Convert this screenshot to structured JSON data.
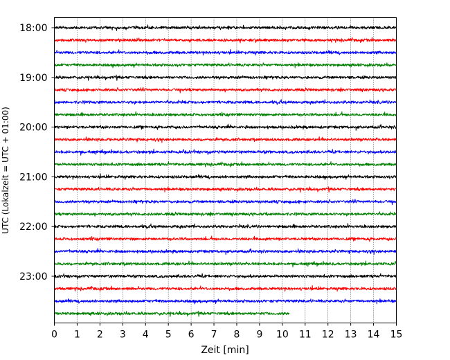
{
  "chart_data": {
    "type": "line",
    "title": "",
    "xlabel": "Zeit  [min]",
    "ylabel": "UTC (Lokalzeit = UTC + 01:00)",
    "xlim": [
      0,
      15
    ],
    "x_ticks": [
      "0",
      "1",
      "2",
      "3",
      "4",
      "5",
      "6",
      "7",
      "8",
      "9",
      "10",
      "11",
      "12",
      "13",
      "14",
      "15"
    ],
    "y_ticks": [
      "18:00",
      "19:00",
      "20:00",
      "21:00",
      "22:00",
      "23:00"
    ],
    "grid": "vertical dotted at each minute",
    "legend": "none",
    "trace_interval_min": 15,
    "trace_colors": [
      "#000000",
      "#ff0000",
      "#0000ff",
      "#008000"
    ],
    "traces": [
      {
        "start": "18:00",
        "end_min": 15
      },
      {
        "start": "18:15",
        "end_min": 15
      },
      {
        "start": "18:30",
        "end_min": 15
      },
      {
        "start": "18:45",
        "end_min": 15
      },
      {
        "start": "19:00",
        "end_min": 15
      },
      {
        "start": "19:15",
        "end_min": 15
      },
      {
        "start": "19:30",
        "end_min": 15
      },
      {
        "start": "19:45",
        "end_min": 15
      },
      {
        "start": "20:00",
        "end_min": 15
      },
      {
        "start": "20:15",
        "end_min": 15
      },
      {
        "start": "20:30",
        "end_min": 15
      },
      {
        "start": "20:45",
        "end_min": 15
      },
      {
        "start": "21:00",
        "end_min": 15
      },
      {
        "start": "21:15",
        "end_min": 15
      },
      {
        "start": "21:30",
        "end_min": 15
      },
      {
        "start": "21:45",
        "end_min": 15
      },
      {
        "start": "22:00",
        "end_min": 15
      },
      {
        "start": "22:15",
        "end_min": 15
      },
      {
        "start": "22:30",
        "end_min": 15
      },
      {
        "start": "22:45",
        "end_min": 15
      },
      {
        "start": "23:00",
        "end_min": 15
      },
      {
        "start": "23:15",
        "end_min": 15
      },
      {
        "start": "23:30",
        "end_min": 15
      },
      {
        "start": "23:45",
        "end_min": 10.3
      }
    ]
  }
}
